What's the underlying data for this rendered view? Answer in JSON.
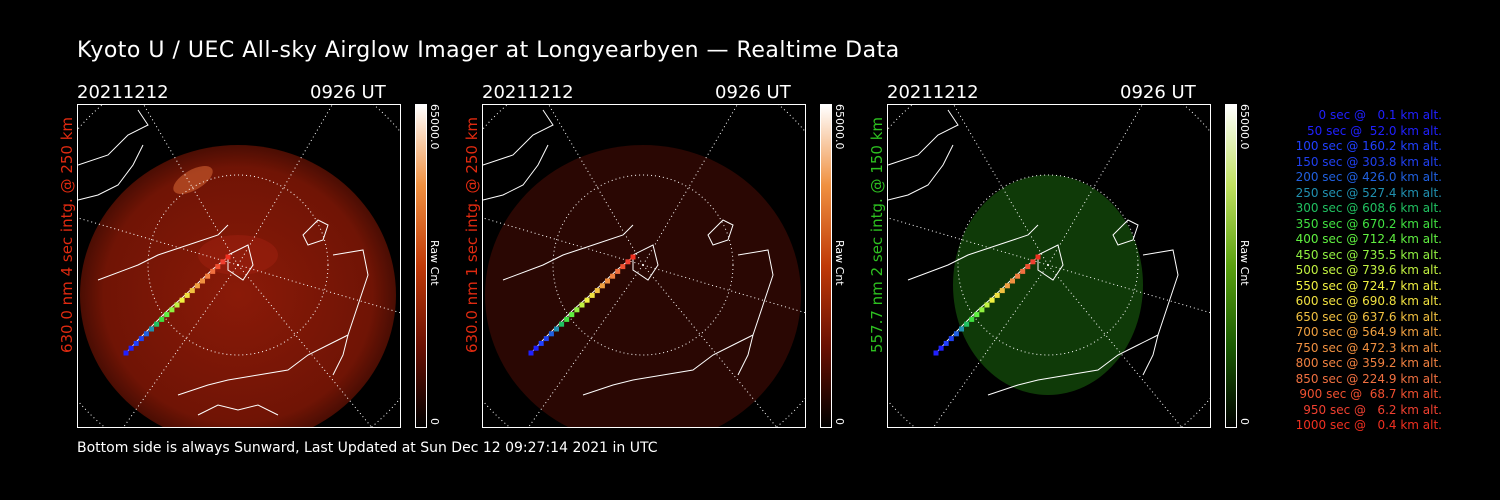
{
  "title": "Kyoto U / UEC All-sky Airglow Imager at Longyearbyen — Realtime Data",
  "panels": [
    {
      "date": "20211212",
      "time": "0926 UT",
      "side_label": "630.0 nm 4 sec intg. @ 250 km",
      "color": "#e02a10",
      "cbar_max": "65000.0",
      "cbar_min": "0",
      "cbar_unit": "Raw Cnt"
    },
    {
      "date": "20211212",
      "time": "0926 UT",
      "side_label": "630.0 nm 1 sec intg. @ 250 km",
      "color": "#e02a10",
      "cbar_max": "65000.0",
      "cbar_min": "0",
      "cbar_unit": "Raw Cnt"
    },
    {
      "date": "20211212",
      "time": "0926 UT",
      "side_label": "557.7 nm 2 sec intg. @ 150 km",
      "color": "#2dc020",
      "cbar_max": "65000.0",
      "cbar_min": "0",
      "cbar_unit": "Raw Cnt"
    }
  ],
  "legend": [
    {
      "text": "0 sec @   0.1 km alt.",
      "color": "#2020ff"
    },
    {
      "text": "50 sec @  52.0 km alt.",
      "color": "#2020ff"
    },
    {
      "text": "100 sec @ 160.2 km alt.",
      "color": "#2040ff"
    },
    {
      "text": "150 sec @ 303.8 km alt.",
      "color": "#2040f0"
    },
    {
      "text": "200 sec @ 426.0 km alt.",
      "color": "#2060e0"
    },
    {
      "text": "250 sec @ 527.4 km alt.",
      "color": "#2090b0"
    },
    {
      "text": "300 sec @ 608.6 km alt.",
      "color": "#20c060"
    },
    {
      "text": "350 sec @ 670.2 km alt.",
      "color": "#40e040"
    },
    {
      "text": "400 sec @ 712.4 km alt.",
      "color": "#60f040"
    },
    {
      "text": "450 sec @ 735.5 km alt.",
      "color": "#90f040"
    },
    {
      "text": "500 sec @ 739.6 km alt.",
      "color": "#c0f040"
    },
    {
      "text": "550 sec @ 724.7 km alt.",
      "color": "#f0f040"
    },
    {
      "text": "600 sec @ 690.8 km alt.",
      "color": "#f0e040"
    },
    {
      "text": "650 sec @ 637.6 km alt.",
      "color": "#f0c040"
    },
    {
      "text": "700 sec @ 564.9 km alt.",
      "color": "#f0a040"
    },
    {
      "text": "750 sec @ 472.3 km alt.",
      "color": "#f09040"
    },
    {
      "text": "800 sec @ 359.2 km alt.",
      "color": "#f08040"
    },
    {
      "text": "850 sec @ 224.9 km alt.",
      "color": "#f07040"
    },
    {
      "text": "900 sec @  68.7 km alt.",
      "color": "#f05030"
    },
    {
      "text": "950 sec @   6.2 km alt.",
      "color": "#f04030"
    },
    {
      "text": "1000 sec @   0.4 km alt.",
      "color": "#f03020"
    }
  ],
  "footer": "Bottom side is always Sunward, Last Updated at Sun Dec 12 09:27:14 2021 in UTC"
}
